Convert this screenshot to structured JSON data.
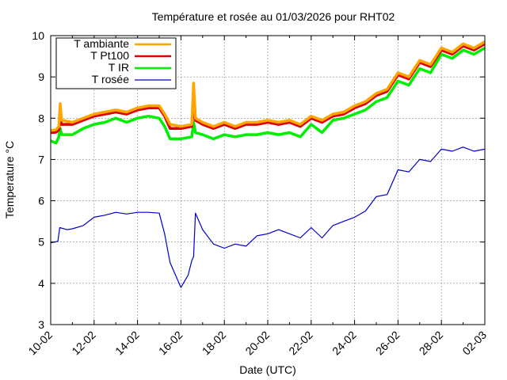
{
  "chart_data": {
    "type": "line",
    "title": "Température et rosée au 01/03/2026 pour RHT02",
    "xlabel": "Date (UTC)",
    "ylabel": "Temperature °C",
    "ylim": [
      3,
      10
    ],
    "xlim": [
      "2026-02-10",
      "2026-03-02"
    ],
    "grid": true,
    "legend_position": "top-left",
    "x_ticks": [
      "10-02",
      "12-02",
      "14-02",
      "16-02",
      "18-02",
      "20-02",
      "22-02",
      "24-02",
      "26-02",
      "28-02",
      "02-03"
    ],
    "y_ticks": [
      3,
      4,
      5,
      6,
      7,
      8,
      9,
      10
    ],
    "series": [
      {
        "name": "T ambiante",
        "color": "#ffa500",
        "points": [
          [
            "2026-02-10T00:00",
            7.7
          ],
          [
            "2026-02-10T06:00",
            7.72
          ],
          [
            "2026-02-10T09:00",
            7.8
          ],
          [
            "2026-02-10T10:30",
            8.35
          ],
          [
            "2026-02-10T12:00",
            7.95
          ],
          [
            "2026-02-11T00:00",
            7.9
          ],
          [
            "2026-02-11T12:00",
            8.0
          ],
          [
            "2026-02-12T00:00",
            8.1
          ],
          [
            "2026-02-12T12:00",
            8.15
          ],
          [
            "2026-02-13T00:00",
            8.2
          ],
          [
            "2026-02-13T12:00",
            8.15
          ],
          [
            "2026-02-14T00:00",
            8.25
          ],
          [
            "2026-02-14T12:00",
            8.3
          ],
          [
            "2026-02-15T00:00",
            8.3
          ],
          [
            "2026-02-15T06:00",
            8.1
          ],
          [
            "2026-02-15T12:00",
            7.85
          ],
          [
            "2026-02-16T00:00",
            7.8
          ],
          [
            "2026-02-16T12:00",
            7.85
          ],
          [
            "2026-02-16T14:00",
            8.85
          ],
          [
            "2026-02-16T16:00",
            8.0
          ],
          [
            "2026-02-17T00:00",
            7.9
          ],
          [
            "2026-02-17T12:00",
            7.8
          ],
          [
            "2026-02-18T00:00",
            7.9
          ],
          [
            "2026-02-18T12:00",
            7.8
          ],
          [
            "2026-02-19T00:00",
            7.9
          ],
          [
            "2026-02-19T12:00",
            7.9
          ],
          [
            "2026-02-20T00:00",
            7.95
          ],
          [
            "2026-02-20T12:00",
            7.9
          ],
          [
            "2026-02-21T00:00",
            7.95
          ],
          [
            "2026-02-21T12:00",
            7.85
          ],
          [
            "2026-02-22T00:00",
            8.05
          ],
          [
            "2026-02-22T12:00",
            7.95
          ],
          [
            "2026-02-23T00:00",
            8.1
          ],
          [
            "2026-02-23T12:00",
            8.15
          ],
          [
            "2026-02-24T00:00",
            8.3
          ],
          [
            "2026-02-24T12:00",
            8.4
          ],
          [
            "2026-02-25T00:00",
            8.6
          ],
          [
            "2026-02-25T12:00",
            8.7
          ],
          [
            "2026-02-26T00:00",
            9.1
          ],
          [
            "2026-02-26T12:00",
            9.0
          ],
          [
            "2026-02-27T00:00",
            9.4
          ],
          [
            "2026-02-27T12:00",
            9.3
          ],
          [
            "2026-02-28T00:00",
            9.7
          ],
          [
            "2026-02-28T12:00",
            9.6
          ],
          [
            "2026-03-01T00:00",
            9.8
          ],
          [
            "2026-03-01T12:00",
            9.7
          ],
          [
            "2026-03-02T00:00",
            9.85
          ]
        ]
      },
      {
        "name": "T Pt100",
        "color": "#dd0000",
        "points": [
          [
            "2026-02-10T00:00",
            7.65
          ],
          [
            "2026-02-10T06:00",
            7.66
          ],
          [
            "2026-02-10T09:00",
            7.72
          ],
          [
            "2026-02-10T10:30",
            8.05
          ],
          [
            "2026-02-10T12:00",
            7.85
          ],
          [
            "2026-02-11T00:00",
            7.85
          ],
          [
            "2026-02-11T12:00",
            7.95
          ],
          [
            "2026-02-12T00:00",
            8.05
          ],
          [
            "2026-02-12T12:00",
            8.1
          ],
          [
            "2026-02-13T00:00",
            8.15
          ],
          [
            "2026-02-13T12:00",
            8.1
          ],
          [
            "2026-02-14T00:00",
            8.2
          ],
          [
            "2026-02-14T12:00",
            8.25
          ],
          [
            "2026-02-15T00:00",
            8.25
          ],
          [
            "2026-02-15T06:00",
            8.05
          ],
          [
            "2026-02-15T12:00",
            7.75
          ],
          [
            "2026-02-16T00:00",
            7.75
          ],
          [
            "2026-02-16T12:00",
            7.8
          ],
          [
            "2026-02-16T14:00",
            8.4
          ],
          [
            "2026-02-16T16:00",
            7.95
          ],
          [
            "2026-02-17T00:00",
            7.85
          ],
          [
            "2026-02-17T12:00",
            7.75
          ],
          [
            "2026-02-18T00:00",
            7.85
          ],
          [
            "2026-02-18T12:00",
            7.75
          ],
          [
            "2026-02-19T00:00",
            7.85
          ],
          [
            "2026-02-19T12:00",
            7.85
          ],
          [
            "2026-02-20T00:00",
            7.9
          ],
          [
            "2026-02-20T12:00",
            7.85
          ],
          [
            "2026-02-21T00:00",
            7.9
          ],
          [
            "2026-02-21T12:00",
            7.8
          ],
          [
            "2026-02-22T00:00",
            8.0
          ],
          [
            "2026-02-22T12:00",
            7.9
          ],
          [
            "2026-02-23T00:00",
            8.05
          ],
          [
            "2026-02-23T12:00",
            8.1
          ],
          [
            "2026-02-24T00:00",
            8.25
          ],
          [
            "2026-02-24T12:00",
            8.35
          ],
          [
            "2026-02-25T00:00",
            8.55
          ],
          [
            "2026-02-25T12:00",
            8.65
          ],
          [
            "2026-02-26T00:00",
            9.05
          ],
          [
            "2026-02-26T12:00",
            8.95
          ],
          [
            "2026-02-27T00:00",
            9.35
          ],
          [
            "2026-02-27T12:00",
            9.25
          ],
          [
            "2026-02-28T00:00",
            9.65
          ],
          [
            "2026-02-28T12:00",
            9.55
          ],
          [
            "2026-03-01T00:00",
            9.75
          ],
          [
            "2026-03-01T12:00",
            9.65
          ],
          [
            "2026-03-02T00:00",
            9.8
          ]
        ]
      },
      {
        "name": "T IR",
        "color": "#00ee00",
        "points": [
          [
            "2026-02-10T00:00",
            7.45
          ],
          [
            "2026-02-10T06:00",
            7.4
          ],
          [
            "2026-02-10T09:00",
            7.55
          ],
          [
            "2026-02-10T10:30",
            7.75
          ],
          [
            "2026-02-10T12:00",
            7.6
          ],
          [
            "2026-02-11T00:00",
            7.6
          ],
          [
            "2026-02-11T12:00",
            7.75
          ],
          [
            "2026-02-12T00:00",
            7.85
          ],
          [
            "2026-02-12T12:00",
            7.9
          ],
          [
            "2026-02-13T00:00",
            8.0
          ],
          [
            "2026-02-13T12:00",
            7.9
          ],
          [
            "2026-02-14T00:00",
            8.0
          ],
          [
            "2026-02-14T12:00",
            8.05
          ],
          [
            "2026-02-15T00:00",
            8.0
          ],
          [
            "2026-02-15T06:00",
            7.8
          ],
          [
            "2026-02-15T12:00",
            7.5
          ],
          [
            "2026-02-16T00:00",
            7.5
          ],
          [
            "2026-02-16T12:00",
            7.55
          ],
          [
            "2026-02-16T14:00",
            7.9
          ],
          [
            "2026-02-16T16:00",
            7.65
          ],
          [
            "2026-02-17T00:00",
            7.6
          ],
          [
            "2026-02-17T12:00",
            7.5
          ],
          [
            "2026-02-18T00:00",
            7.6
          ],
          [
            "2026-02-18T12:00",
            7.55
          ],
          [
            "2026-02-19T00:00",
            7.6
          ],
          [
            "2026-02-19T12:00",
            7.6
          ],
          [
            "2026-02-20T00:00",
            7.65
          ],
          [
            "2026-02-20T12:00",
            7.6
          ],
          [
            "2026-02-21T00:00",
            7.65
          ],
          [
            "2026-02-21T12:00",
            7.55
          ],
          [
            "2026-02-22T00:00",
            7.85
          ],
          [
            "2026-02-22T12:00",
            7.65
          ],
          [
            "2026-02-23T00:00",
            7.95
          ],
          [
            "2026-02-23T12:00",
            8.0
          ],
          [
            "2026-02-24T00:00",
            8.1
          ],
          [
            "2026-02-24T12:00",
            8.2
          ],
          [
            "2026-02-25T00:00",
            8.4
          ],
          [
            "2026-02-25T12:00",
            8.5
          ],
          [
            "2026-02-26T00:00",
            8.9
          ],
          [
            "2026-02-26T12:00",
            8.8
          ],
          [
            "2026-02-27T00:00",
            9.2
          ],
          [
            "2026-02-27T12:00",
            9.1
          ],
          [
            "2026-02-28T00:00",
            9.55
          ],
          [
            "2026-02-28T12:00",
            9.45
          ],
          [
            "2026-03-01T00:00",
            9.65
          ],
          [
            "2026-03-01T12:00",
            9.55
          ],
          [
            "2026-03-02T00:00",
            9.7
          ]
        ]
      },
      {
        "name": "T rosée",
        "color": "#0000cc",
        "points": [
          [
            "2026-02-10T00:00",
            4.98
          ],
          [
            "2026-02-10T08:00",
            5.02
          ],
          [
            "2026-02-10T10:00",
            5.35
          ],
          [
            "2026-02-10T18:00",
            5.3
          ],
          [
            "2026-02-11T00:00",
            5.32
          ],
          [
            "2026-02-11T12:00",
            5.4
          ],
          [
            "2026-02-12T00:00",
            5.6
          ],
          [
            "2026-02-12T12:00",
            5.65
          ],
          [
            "2026-02-13T00:00",
            5.72
          ],
          [
            "2026-02-13T12:00",
            5.68
          ],
          [
            "2026-02-14T00:00",
            5.72
          ],
          [
            "2026-02-14T12:00",
            5.72
          ],
          [
            "2026-02-15T00:00",
            5.7
          ],
          [
            "2026-02-15T06:00",
            5.2
          ],
          [
            "2026-02-15T12:00",
            4.5
          ],
          [
            "2026-02-15T20:00",
            4.1
          ],
          [
            "2026-02-16T00:00",
            3.9
          ],
          [
            "2026-02-16T08:00",
            4.2
          ],
          [
            "2026-02-16T12:00",
            4.55
          ],
          [
            "2026-02-16T14:00",
            4.65
          ],
          [
            "2026-02-16T16:00",
            5.7
          ],
          [
            "2026-02-17T00:00",
            5.3
          ],
          [
            "2026-02-17T12:00",
            4.95
          ],
          [
            "2026-02-18T00:00",
            4.85
          ],
          [
            "2026-02-18T12:00",
            4.95
          ],
          [
            "2026-02-19T00:00",
            4.9
          ],
          [
            "2026-02-19T12:00",
            5.15
          ],
          [
            "2026-02-20T00:00",
            5.2
          ],
          [
            "2026-02-20T12:00",
            5.3
          ],
          [
            "2026-02-21T00:00",
            5.2
          ],
          [
            "2026-02-21T12:00",
            5.1
          ],
          [
            "2026-02-22T00:00",
            5.35
          ],
          [
            "2026-02-22T12:00",
            5.1
          ],
          [
            "2026-02-23T00:00",
            5.4
          ],
          [
            "2026-02-23T12:00",
            5.5
          ],
          [
            "2026-02-24T00:00",
            5.6
          ],
          [
            "2026-02-24T12:00",
            5.75
          ],
          [
            "2026-02-25T00:00",
            6.1
          ],
          [
            "2026-02-25T12:00",
            6.15
          ],
          [
            "2026-02-26T00:00",
            6.75
          ],
          [
            "2026-02-26T12:00",
            6.7
          ],
          [
            "2026-02-27T00:00",
            7.0
          ],
          [
            "2026-02-27T12:00",
            6.95
          ],
          [
            "2026-02-28T00:00",
            7.25
          ],
          [
            "2026-02-28T12:00",
            7.2
          ],
          [
            "2026-03-01T00:00",
            7.3
          ],
          [
            "2026-03-01T12:00",
            7.2
          ],
          [
            "2026-03-02T00:00",
            7.25
          ]
        ]
      }
    ]
  }
}
